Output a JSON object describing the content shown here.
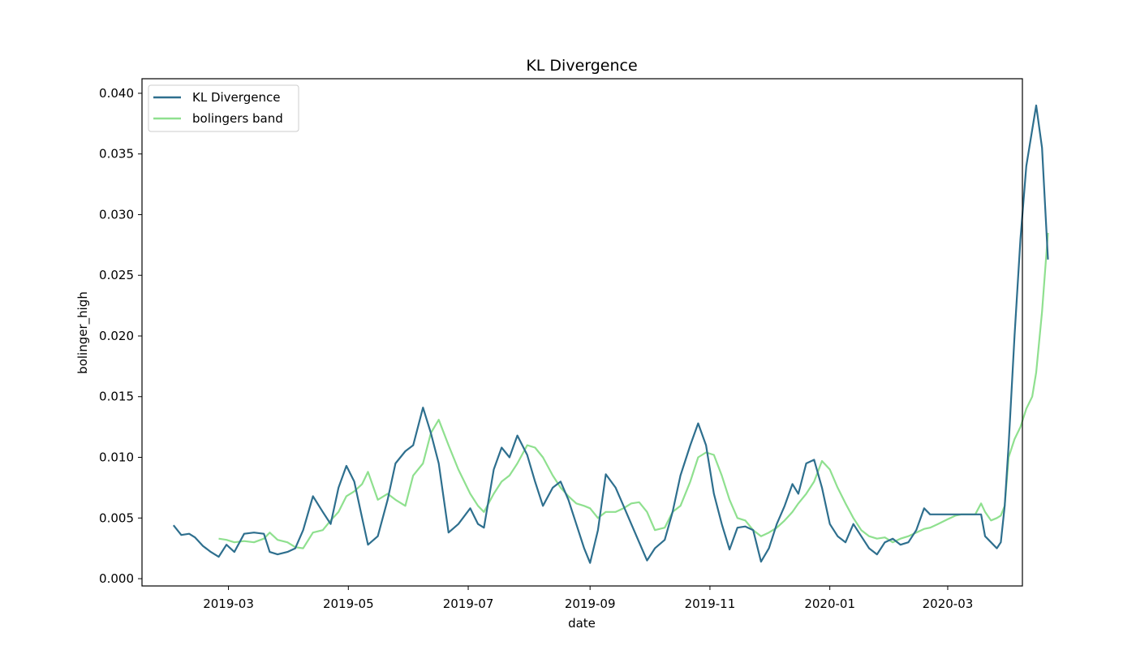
{
  "chart_data": {
    "type": "line",
    "title": "KL Divergence",
    "xlabel": "date",
    "ylabel": "bolinger_high",
    "xlim": [
      "2019-01-16",
      "2020-04-08"
    ],
    "ylim": [
      -0.0006,
      0.0412
    ],
    "x_ticks": [
      "2019-03-01",
      "2019-05-01",
      "2019-07-01",
      "2019-09-01",
      "2019-11-01",
      "2020-01-01",
      "2020-03-01"
    ],
    "x_tick_labels": [
      "2019-03",
      "2019-05",
      "2019-07",
      "2019-09",
      "2019-11",
      "2020-01",
      "2020-03"
    ],
    "y_ticks": [
      0.0,
      0.005,
      0.01,
      0.015,
      0.02,
      0.025,
      0.03,
      0.035,
      0.04
    ],
    "y_tick_labels": [
      "0.000",
      "0.005",
      "0.010",
      "0.015",
      "0.020",
      "0.025",
      "0.030",
      "0.035",
      "0.040"
    ],
    "grid": false,
    "legend_position": "upper-left",
    "series": [
      {
        "name": "KL Divergence",
        "color": "#2e6f8e",
        "points": [
          [
            "2019-02-01",
            0.0044
          ],
          [
            "2019-02-05",
            0.0036
          ],
          [
            "2019-02-09",
            0.0037
          ],
          [
            "2019-02-12",
            0.0034
          ],
          [
            "2019-02-16",
            0.0027
          ],
          [
            "2019-02-20",
            0.0022
          ],
          [
            "2019-02-24",
            0.0018
          ],
          [
            "2019-02-28",
            0.0028
          ],
          [
            "2019-03-04",
            0.0022
          ],
          [
            "2019-03-09",
            0.0037
          ],
          [
            "2019-03-14",
            0.0038
          ],
          [
            "2019-03-19",
            0.0037
          ],
          [
            "2019-03-22",
            0.0022
          ],
          [
            "2019-03-26",
            0.002
          ],
          [
            "2019-03-31",
            0.0022
          ],
          [
            "2019-04-04",
            0.0025
          ],
          [
            "2019-04-08",
            0.004
          ],
          [
            "2019-04-13",
            0.0068
          ],
          [
            "2019-04-18",
            0.0055
          ],
          [
            "2019-04-22",
            0.0045
          ],
          [
            "2019-04-26",
            0.0075
          ],
          [
            "2019-04-30",
            0.0093
          ],
          [
            "2019-05-04",
            0.008
          ],
          [
            "2019-05-08",
            0.005
          ],
          [
            "2019-05-11",
            0.0028
          ],
          [
            "2019-05-16",
            0.0035
          ],
          [
            "2019-05-21",
            0.0065
          ],
          [
            "2019-05-25",
            0.0095
          ],
          [
            "2019-05-30",
            0.0105
          ],
          [
            "2019-06-03",
            0.011
          ],
          [
            "2019-06-08",
            0.0141
          ],
          [
            "2019-06-12",
            0.012
          ],
          [
            "2019-06-16",
            0.0095
          ],
          [
            "2019-06-21",
            0.0038
          ],
          [
            "2019-06-26",
            0.0045
          ],
          [
            "2019-07-02",
            0.0058
          ],
          [
            "2019-07-06",
            0.0045
          ],
          [
            "2019-07-09",
            0.0042
          ],
          [
            "2019-07-14",
            0.009
          ],
          [
            "2019-07-18",
            0.0108
          ],
          [
            "2019-07-22",
            0.01
          ],
          [
            "2019-07-26",
            0.0118
          ],
          [
            "2019-07-31",
            0.0102
          ],
          [
            "2019-08-04",
            0.008
          ],
          [
            "2019-08-08",
            0.006
          ],
          [
            "2019-08-13",
            0.0075
          ],
          [
            "2019-08-17",
            0.008
          ],
          [
            "2019-08-21",
            0.0065
          ],
          [
            "2019-08-25",
            0.0045
          ],
          [
            "2019-08-29",
            0.0025
          ],
          [
            "2019-09-01",
            0.0013
          ],
          [
            "2019-09-05",
            0.004
          ],
          [
            "2019-09-09",
            0.0086
          ],
          [
            "2019-09-14",
            0.0075
          ],
          [
            "2019-09-18",
            0.006
          ],
          [
            "2019-09-22",
            0.0045
          ],
          [
            "2019-09-26",
            0.003
          ],
          [
            "2019-09-30",
            0.0015
          ],
          [
            "2019-10-04",
            0.0025
          ],
          [
            "2019-10-09",
            0.0032
          ],
          [
            "2019-10-13",
            0.0055
          ],
          [
            "2019-10-17",
            0.0085
          ],
          [
            "2019-10-22",
            0.011
          ],
          [
            "2019-10-26",
            0.0128
          ],
          [
            "2019-10-30",
            0.011
          ],
          [
            "2019-11-03",
            0.007
          ],
          [
            "2019-11-07",
            0.0045
          ],
          [
            "2019-11-11",
            0.0024
          ],
          [
            "2019-11-15",
            0.0042
          ],
          [
            "2019-11-19",
            0.0043
          ],
          [
            "2019-11-23",
            0.004
          ],
          [
            "2019-11-27",
            0.0014
          ],
          [
            "2019-12-01",
            0.0025
          ],
          [
            "2019-12-05",
            0.0045
          ],
          [
            "2019-12-09",
            0.006
          ],
          [
            "2019-12-13",
            0.0078
          ],
          [
            "2019-12-16",
            0.007
          ],
          [
            "2019-12-20",
            0.0095
          ],
          [
            "2019-12-24",
            0.0098
          ],
          [
            "2019-12-28",
            0.0075
          ],
          [
            "2020-01-01",
            0.0045
          ],
          [
            "2020-01-05",
            0.0035
          ],
          [
            "2020-01-09",
            0.003
          ],
          [
            "2020-01-13",
            0.0045
          ],
          [
            "2020-01-17",
            0.0035
          ],
          [
            "2020-01-21",
            0.0025
          ],
          [
            "2020-01-25",
            0.002
          ],
          [
            "2020-01-29",
            0.003
          ],
          [
            "2020-02-02",
            0.0033
          ],
          [
            "2020-02-06",
            0.0028
          ],
          [
            "2020-02-10",
            0.003
          ],
          [
            "2020-02-14",
            0.004
          ],
          [
            "2020-02-18",
            0.0058
          ],
          [
            "2020-02-21",
            0.0053
          ],
          [
            "2020-02-25",
            0.0053
          ],
          [
            "2020-03-01",
            0.0053
          ],
          [
            "2020-03-05",
            0.0053
          ],
          [
            "2020-03-08",
            0.0053
          ],
          [
            "2020-03-12",
            0.0053
          ],
          [
            "2020-03-15",
            0.0053
          ],
          [
            "2020-03-18",
            0.0053
          ],
          [
            "2020-03-20",
            0.0035
          ],
          [
            "2020-03-23",
            0.003
          ],
          [
            "2020-03-26",
            0.0025
          ],
          [
            "2020-03-28",
            0.003
          ],
          [
            "2020-03-30",
            0.006
          ],
          [
            "2020-04-01",
            0.011
          ],
          [
            "2020-04-04",
            0.02
          ],
          [
            "2020-04-07",
            0.028
          ],
          [
            "2020-04-10",
            0.034
          ],
          [
            "2020-04-13",
            0.037
          ],
          [
            "2020-04-15",
            0.039
          ],
          [
            "2020-04-18",
            0.0355
          ],
          [
            "2020-04-21",
            0.0263
          ]
        ]
      },
      {
        "name": "bolingers band",
        "color": "#8fe08f",
        "points": [
          [
            "2019-02-24",
            0.0033
          ],
          [
            "2019-02-28",
            0.0032
          ],
          [
            "2019-03-04",
            0.003
          ],
          [
            "2019-03-09",
            0.0031
          ],
          [
            "2019-03-14",
            0.003
          ],
          [
            "2019-03-19",
            0.0033
          ],
          [
            "2019-03-22",
            0.0038
          ],
          [
            "2019-03-26",
            0.0032
          ],
          [
            "2019-03-31",
            0.003
          ],
          [
            "2019-04-04",
            0.0026
          ],
          [
            "2019-04-08",
            0.0025
          ],
          [
            "2019-04-13",
            0.0038
          ],
          [
            "2019-04-18",
            0.004
          ],
          [
            "2019-04-22",
            0.0048
          ],
          [
            "2019-04-26",
            0.0055
          ],
          [
            "2019-04-30",
            0.0068
          ],
          [
            "2019-05-04",
            0.0072
          ],
          [
            "2019-05-08",
            0.0078
          ],
          [
            "2019-05-11",
            0.0088
          ],
          [
            "2019-05-16",
            0.0065
          ],
          [
            "2019-05-21",
            0.007
          ],
          [
            "2019-05-25",
            0.0065
          ],
          [
            "2019-05-30",
            0.006
          ],
          [
            "2019-06-03",
            0.0085
          ],
          [
            "2019-06-08",
            0.0095
          ],
          [
            "2019-06-12",
            0.012
          ],
          [
            "2019-06-16",
            0.0131
          ],
          [
            "2019-06-21",
            0.011
          ],
          [
            "2019-06-26",
            0.009
          ],
          [
            "2019-07-02",
            0.007
          ],
          [
            "2019-07-06",
            0.006
          ],
          [
            "2019-07-09",
            0.0055
          ],
          [
            "2019-07-14",
            0.007
          ],
          [
            "2019-07-18",
            0.008
          ],
          [
            "2019-07-22",
            0.0085
          ],
          [
            "2019-07-26",
            0.0095
          ],
          [
            "2019-07-31",
            0.011
          ],
          [
            "2019-08-04",
            0.0108
          ],
          [
            "2019-08-08",
            0.01
          ],
          [
            "2019-08-13",
            0.0085
          ],
          [
            "2019-08-17",
            0.0075
          ],
          [
            "2019-08-21",
            0.0068
          ],
          [
            "2019-08-25",
            0.0062
          ],
          [
            "2019-08-29",
            0.006
          ],
          [
            "2019-09-01",
            0.0058
          ],
          [
            "2019-09-05",
            0.005
          ],
          [
            "2019-09-09",
            0.0055
          ],
          [
            "2019-09-14",
            0.0055
          ],
          [
            "2019-09-18",
            0.0058
          ],
          [
            "2019-09-22",
            0.0062
          ],
          [
            "2019-09-26",
            0.0063
          ],
          [
            "2019-09-30",
            0.0055
          ],
          [
            "2019-10-04",
            0.004
          ],
          [
            "2019-10-09",
            0.0042
          ],
          [
            "2019-10-13",
            0.0055
          ],
          [
            "2019-10-17",
            0.006
          ],
          [
            "2019-10-22",
            0.008
          ],
          [
            "2019-10-26",
            0.01
          ],
          [
            "2019-10-30",
            0.0104
          ],
          [
            "2019-11-03",
            0.0102
          ],
          [
            "2019-11-07",
            0.0085
          ],
          [
            "2019-11-11",
            0.0065
          ],
          [
            "2019-11-15",
            0.005
          ],
          [
            "2019-11-19",
            0.0048
          ],
          [
            "2019-11-23",
            0.004
          ],
          [
            "2019-11-27",
            0.0035
          ],
          [
            "2019-12-01",
            0.0038
          ],
          [
            "2019-12-05",
            0.0042
          ],
          [
            "2019-12-09",
            0.0048
          ],
          [
            "2019-12-13",
            0.0055
          ],
          [
            "2019-12-16",
            0.0062
          ],
          [
            "2019-12-20",
            0.007
          ],
          [
            "2019-12-24",
            0.008
          ],
          [
            "2019-12-28",
            0.0097
          ],
          [
            "2020-01-01",
            0.009
          ],
          [
            "2020-01-05",
            0.0075
          ],
          [
            "2020-01-09",
            0.0062
          ],
          [
            "2020-01-13",
            0.005
          ],
          [
            "2020-01-17",
            0.004
          ],
          [
            "2020-01-21",
            0.0035
          ],
          [
            "2020-01-25",
            0.0033
          ],
          [
            "2020-01-29",
            0.0034
          ],
          [
            "2020-02-02",
            0.003
          ],
          [
            "2020-02-06",
            0.0033
          ],
          [
            "2020-02-10",
            0.0035
          ],
          [
            "2020-02-14",
            0.0038
          ],
          [
            "2020-02-18",
            0.0041
          ],
          [
            "2020-02-21",
            0.0042
          ],
          [
            "2020-02-25",
            0.0045
          ],
          [
            "2020-03-01",
            0.0049
          ],
          [
            "2020-03-05",
            0.0052
          ],
          [
            "2020-03-08",
            0.0053
          ],
          [
            "2020-03-12",
            0.0053
          ],
          [
            "2020-03-15",
            0.0053
          ],
          [
            "2020-03-18",
            0.0062
          ],
          [
            "2020-03-20",
            0.0055
          ],
          [
            "2020-03-23",
            0.0048
          ],
          [
            "2020-03-26",
            0.005
          ],
          [
            "2020-03-28",
            0.0052
          ],
          [
            "2020-03-30",
            0.006
          ],
          [
            "2020-04-01",
            0.01
          ],
          [
            "2020-04-04",
            0.0115
          ],
          [
            "2020-04-07",
            0.0125
          ],
          [
            "2020-04-10",
            0.014
          ],
          [
            "2020-04-13",
            0.015
          ],
          [
            "2020-04-15",
            0.017
          ],
          [
            "2020-04-18",
            0.022
          ],
          [
            "2020-04-21",
            0.0285
          ]
        ]
      }
    ]
  }
}
